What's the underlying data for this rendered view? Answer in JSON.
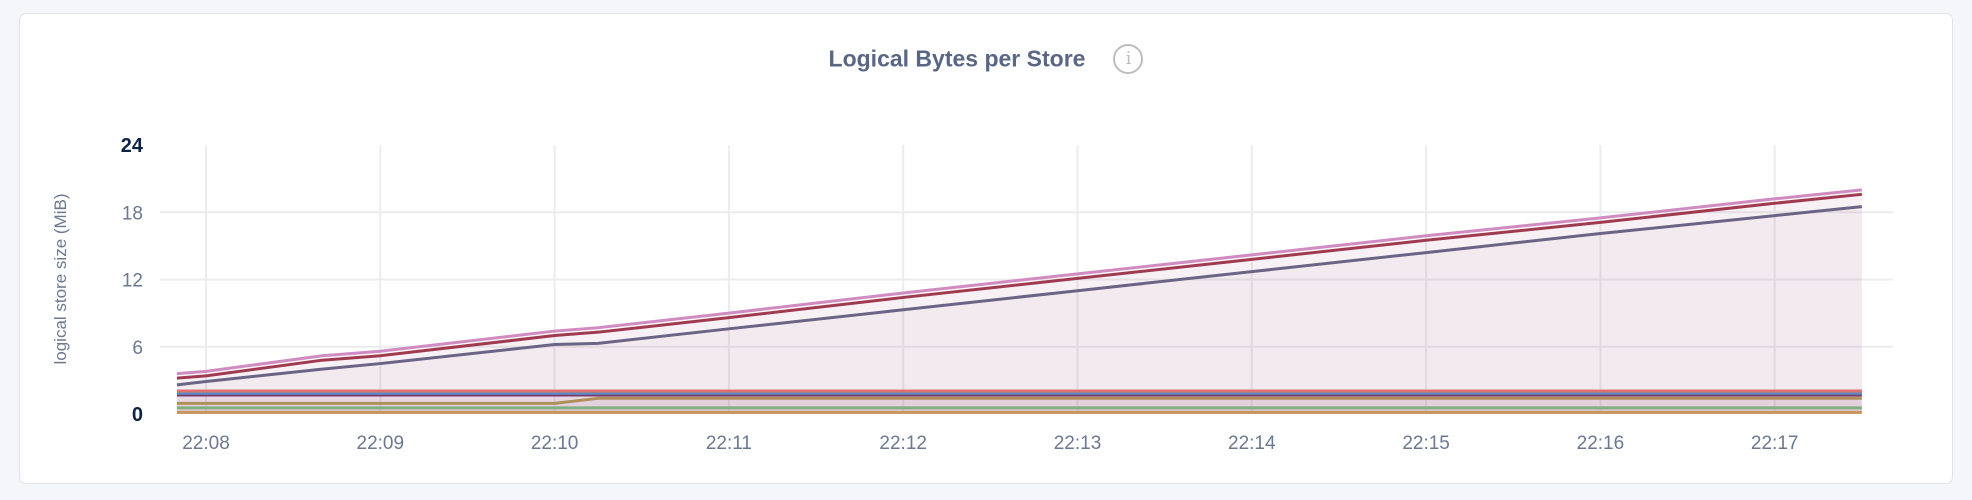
{
  "chart_data": {
    "type": "area",
    "stacked": true,
    "title": "Logical Bytes per Store",
    "info_icon": "info-circle-icon",
    "ylabel": "logical store size (MiB)",
    "xlabel": "",
    "ylim": [
      0,
      24
    ],
    "yticks": [
      "0",
      "6",
      "12",
      "18",
      "24"
    ],
    "bold_yticks": [
      "0",
      "24"
    ],
    "xticks": [
      "22:08",
      "22:09",
      "22:10",
      "22:11",
      "22:12",
      "22:13",
      "22:14",
      "22:15",
      "22:16",
      "22:17"
    ],
    "xrange": [
      "22:07:50",
      "22:17:30"
    ],
    "grid": true,
    "legend": "none",
    "x": [
      "22:07:50",
      "22:08:00",
      "22:08:40",
      "22:09:00",
      "22:10:00",
      "22:10:15",
      "22:11:00",
      "22:12:00",
      "22:13:00",
      "22:14:00",
      "22:15:00",
      "22:16:00",
      "22:17:00",
      "22:17:30"
    ],
    "series": [
      {
        "color": "#c8955a",
        "values": [
          0.15,
          0.15,
          0.15,
          0.15,
          0.15,
          0.15,
          0.15,
          0.15,
          0.15,
          0.15,
          0.15,
          0.15,
          0.15,
          0.15
        ]
      },
      {
        "color": "#7fb07f",
        "values": [
          0.4,
          0.4,
          0.4,
          0.4,
          0.4,
          0.4,
          0.4,
          0.4,
          0.4,
          0.4,
          0.4,
          0.4,
          0.4,
          0.4
        ]
      },
      {
        "color": "#b0905a",
        "values": [
          0.4,
          0.4,
          0.4,
          0.4,
          0.4,
          0.85,
          0.85,
          0.85,
          0.85,
          0.85,
          0.85,
          0.85,
          0.85,
          0.85
        ]
      },
      {
        "color": "#7a3a6e",
        "values": [
          0.75,
          0.75,
          0.75,
          0.75,
          0.75,
          0.3,
          0.3,
          0.3,
          0.3,
          0.3,
          0.3,
          0.3,
          0.3,
          0.3
        ]
      },
      {
        "color": "#5b8cc0",
        "values": [
          0.15,
          0.15,
          0.15,
          0.15,
          0.15,
          0.15,
          0.15,
          0.15,
          0.15,
          0.15,
          0.15,
          0.15,
          0.15,
          0.15
        ]
      },
      {
        "color": "#e07070",
        "values": [
          0.2,
          0.2,
          0.2,
          0.2,
          0.2,
          0.2,
          0.2,
          0.2,
          0.2,
          0.2,
          0.2,
          0.2,
          0.2,
          0.2
        ]
      },
      {
        "color": "#6b6585",
        "values": [
          0.55,
          0.85,
          1.95,
          2.45,
          4.15,
          4.25,
          5.55,
          7.25,
          8.95,
          10.65,
          12.35,
          14.05,
          15.65,
          16.45
        ]
      },
      {
        "color": "#a03a50",
        "values": [
          0.6,
          0.5,
          0.8,
          0.7,
          0.8,
          1.0,
          1.0,
          1.1,
          1.1,
          1.1,
          1.1,
          1.0,
          1.1,
          1.1
        ]
      },
      {
        "color": "#d08cc0",
        "values": [
          0.4,
          0.4,
          0.4,
          0.4,
          0.4,
          0.4,
          0.4,
          0.4,
          0.4,
          0.4,
          0.4,
          0.4,
          0.4,
          0.4
        ]
      }
    ]
  }
}
